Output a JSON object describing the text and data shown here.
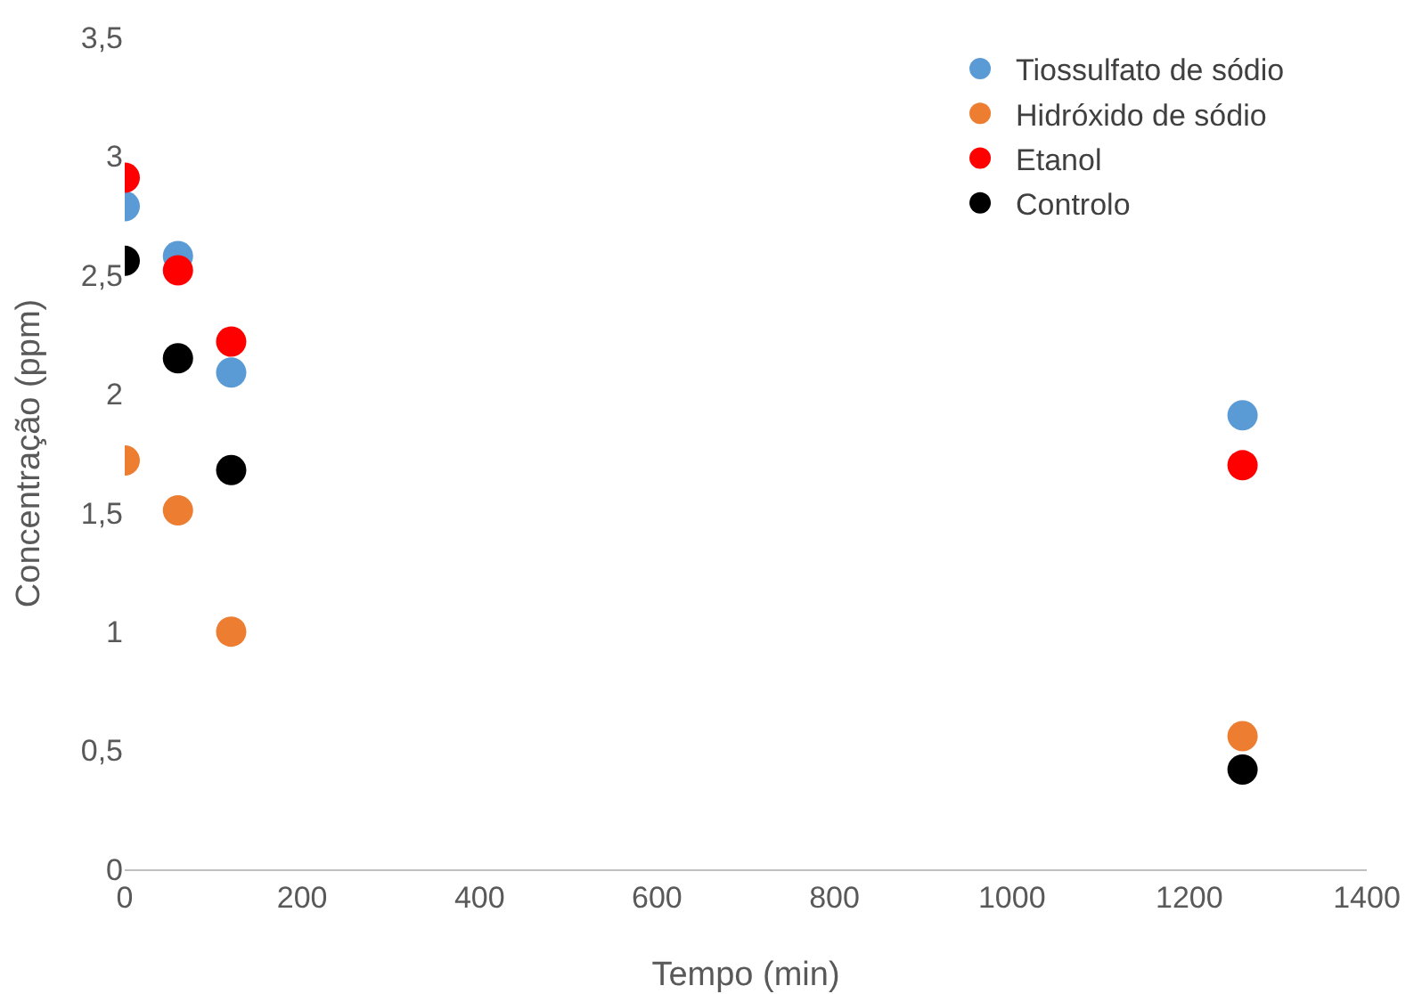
{
  "chart_data": {
    "type": "scatter",
    "xlabel": "Tempo (min)",
    "ylabel": "Concentração (ppm)",
    "x": [
      0,
      60,
      120,
      1260
    ],
    "series": [
      {
        "name": "Tiossulfato de sódio",
        "color": "#5b9bd5",
        "values": [
          2.79,
          2.58,
          2.09,
          1.91
        ]
      },
      {
        "name": "Hidróxido de sódio",
        "color": "#ed7d31",
        "values": [
          1.72,
          1.51,
          1.0,
          0.56
        ]
      },
      {
        "name": "Etanol",
        "color": "#ff0000",
        "values": [
          2.91,
          2.52,
          2.22,
          1.7
        ]
      },
      {
        "name": "Controlo",
        "color": "#000000",
        "values": [
          2.56,
          2.15,
          1.68,
          0.42
        ]
      }
    ],
    "xlim": [
      0,
      1400
    ],
    "xticks": [
      0,
      200,
      400,
      600,
      800,
      1000,
      1200,
      1400
    ],
    "ylim": [
      0,
      3.5
    ],
    "yticks": [
      0,
      {
        "value": 0.5,
        "label": "0,5"
      },
      1,
      {
        "value": 1.5,
        "label": "1,5"
      },
      2,
      {
        "value": 2.5,
        "label": "2,5"
      },
      3,
      {
        "value": 3.5,
        "label": "3,5"
      }
    ],
    "grid": false,
    "legend": "top right",
    "marker": "circle"
  }
}
